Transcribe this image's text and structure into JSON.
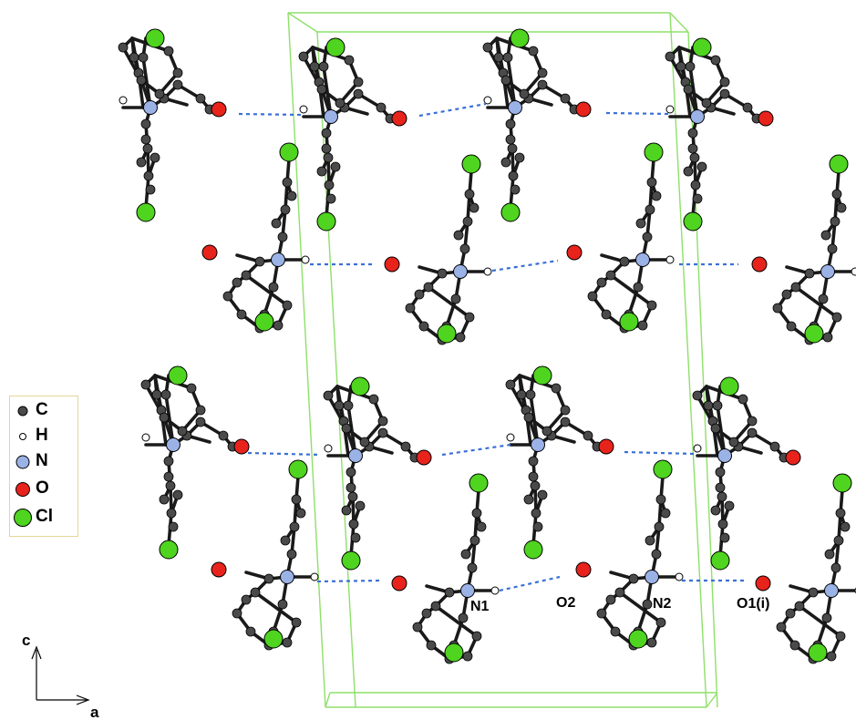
{
  "legend": {
    "items": [
      {
        "label": "C",
        "color": "#4a4a4a",
        "size": "small"
      },
      {
        "label": "H",
        "color": "#ffffff",
        "size": "tiny"
      },
      {
        "label": "N",
        "color": "#9bb2e6",
        "size": "medium"
      },
      {
        "label": "O",
        "color": "#e8231c",
        "size": "medium"
      },
      {
        "label": "Cl",
        "color": "#4fd41f",
        "size": "large"
      }
    ]
  },
  "atom_labels": {
    "n1": "N1",
    "o2": "O2",
    "n2": "N2",
    "o1i": "O1(i)"
  },
  "axes": {
    "c": "c",
    "a": "a"
  },
  "colors": {
    "unit_cell": "#8fe06a",
    "hbond": "#3a6fd8",
    "bond": "#1a1a1a"
  }
}
